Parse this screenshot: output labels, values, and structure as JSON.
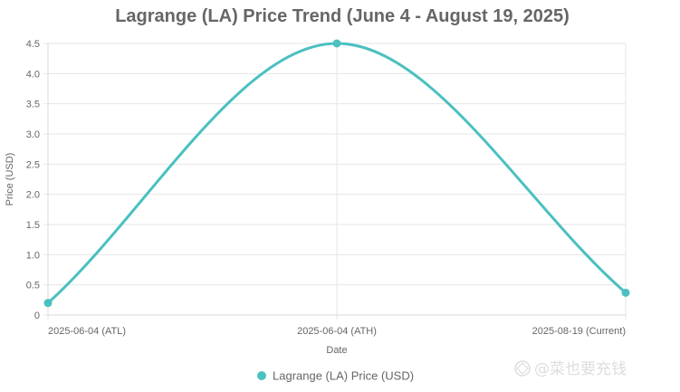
{
  "chart_data": {
    "type": "line",
    "title": "Lagrange (LA) Price Trend (June 4 - August 19, 2025)",
    "xlabel": "Date",
    "ylabel": "Price (USD)",
    "categories": [
      "2025-06-04 (ATL)",
      "2025-06-04 (ATH)",
      "2025-08-19 (Current)"
    ],
    "series": [
      {
        "name": "Lagrange (LA) Price (USD)",
        "values": [
          0.2,
          4.5,
          0.37
        ],
        "color": "#4bc0c0"
      }
    ],
    "ylim": [
      0,
      4.5
    ],
    "yticks": [
      "0",
      "0.5",
      "1.0",
      "1.5",
      "2.0",
      "2.5",
      "3.0",
      "3.5",
      "4.0",
      "4.5"
    ],
    "grid": true,
    "legend_position": "bottom"
  },
  "watermark": {
    "text": "@菜也要充钱"
  }
}
